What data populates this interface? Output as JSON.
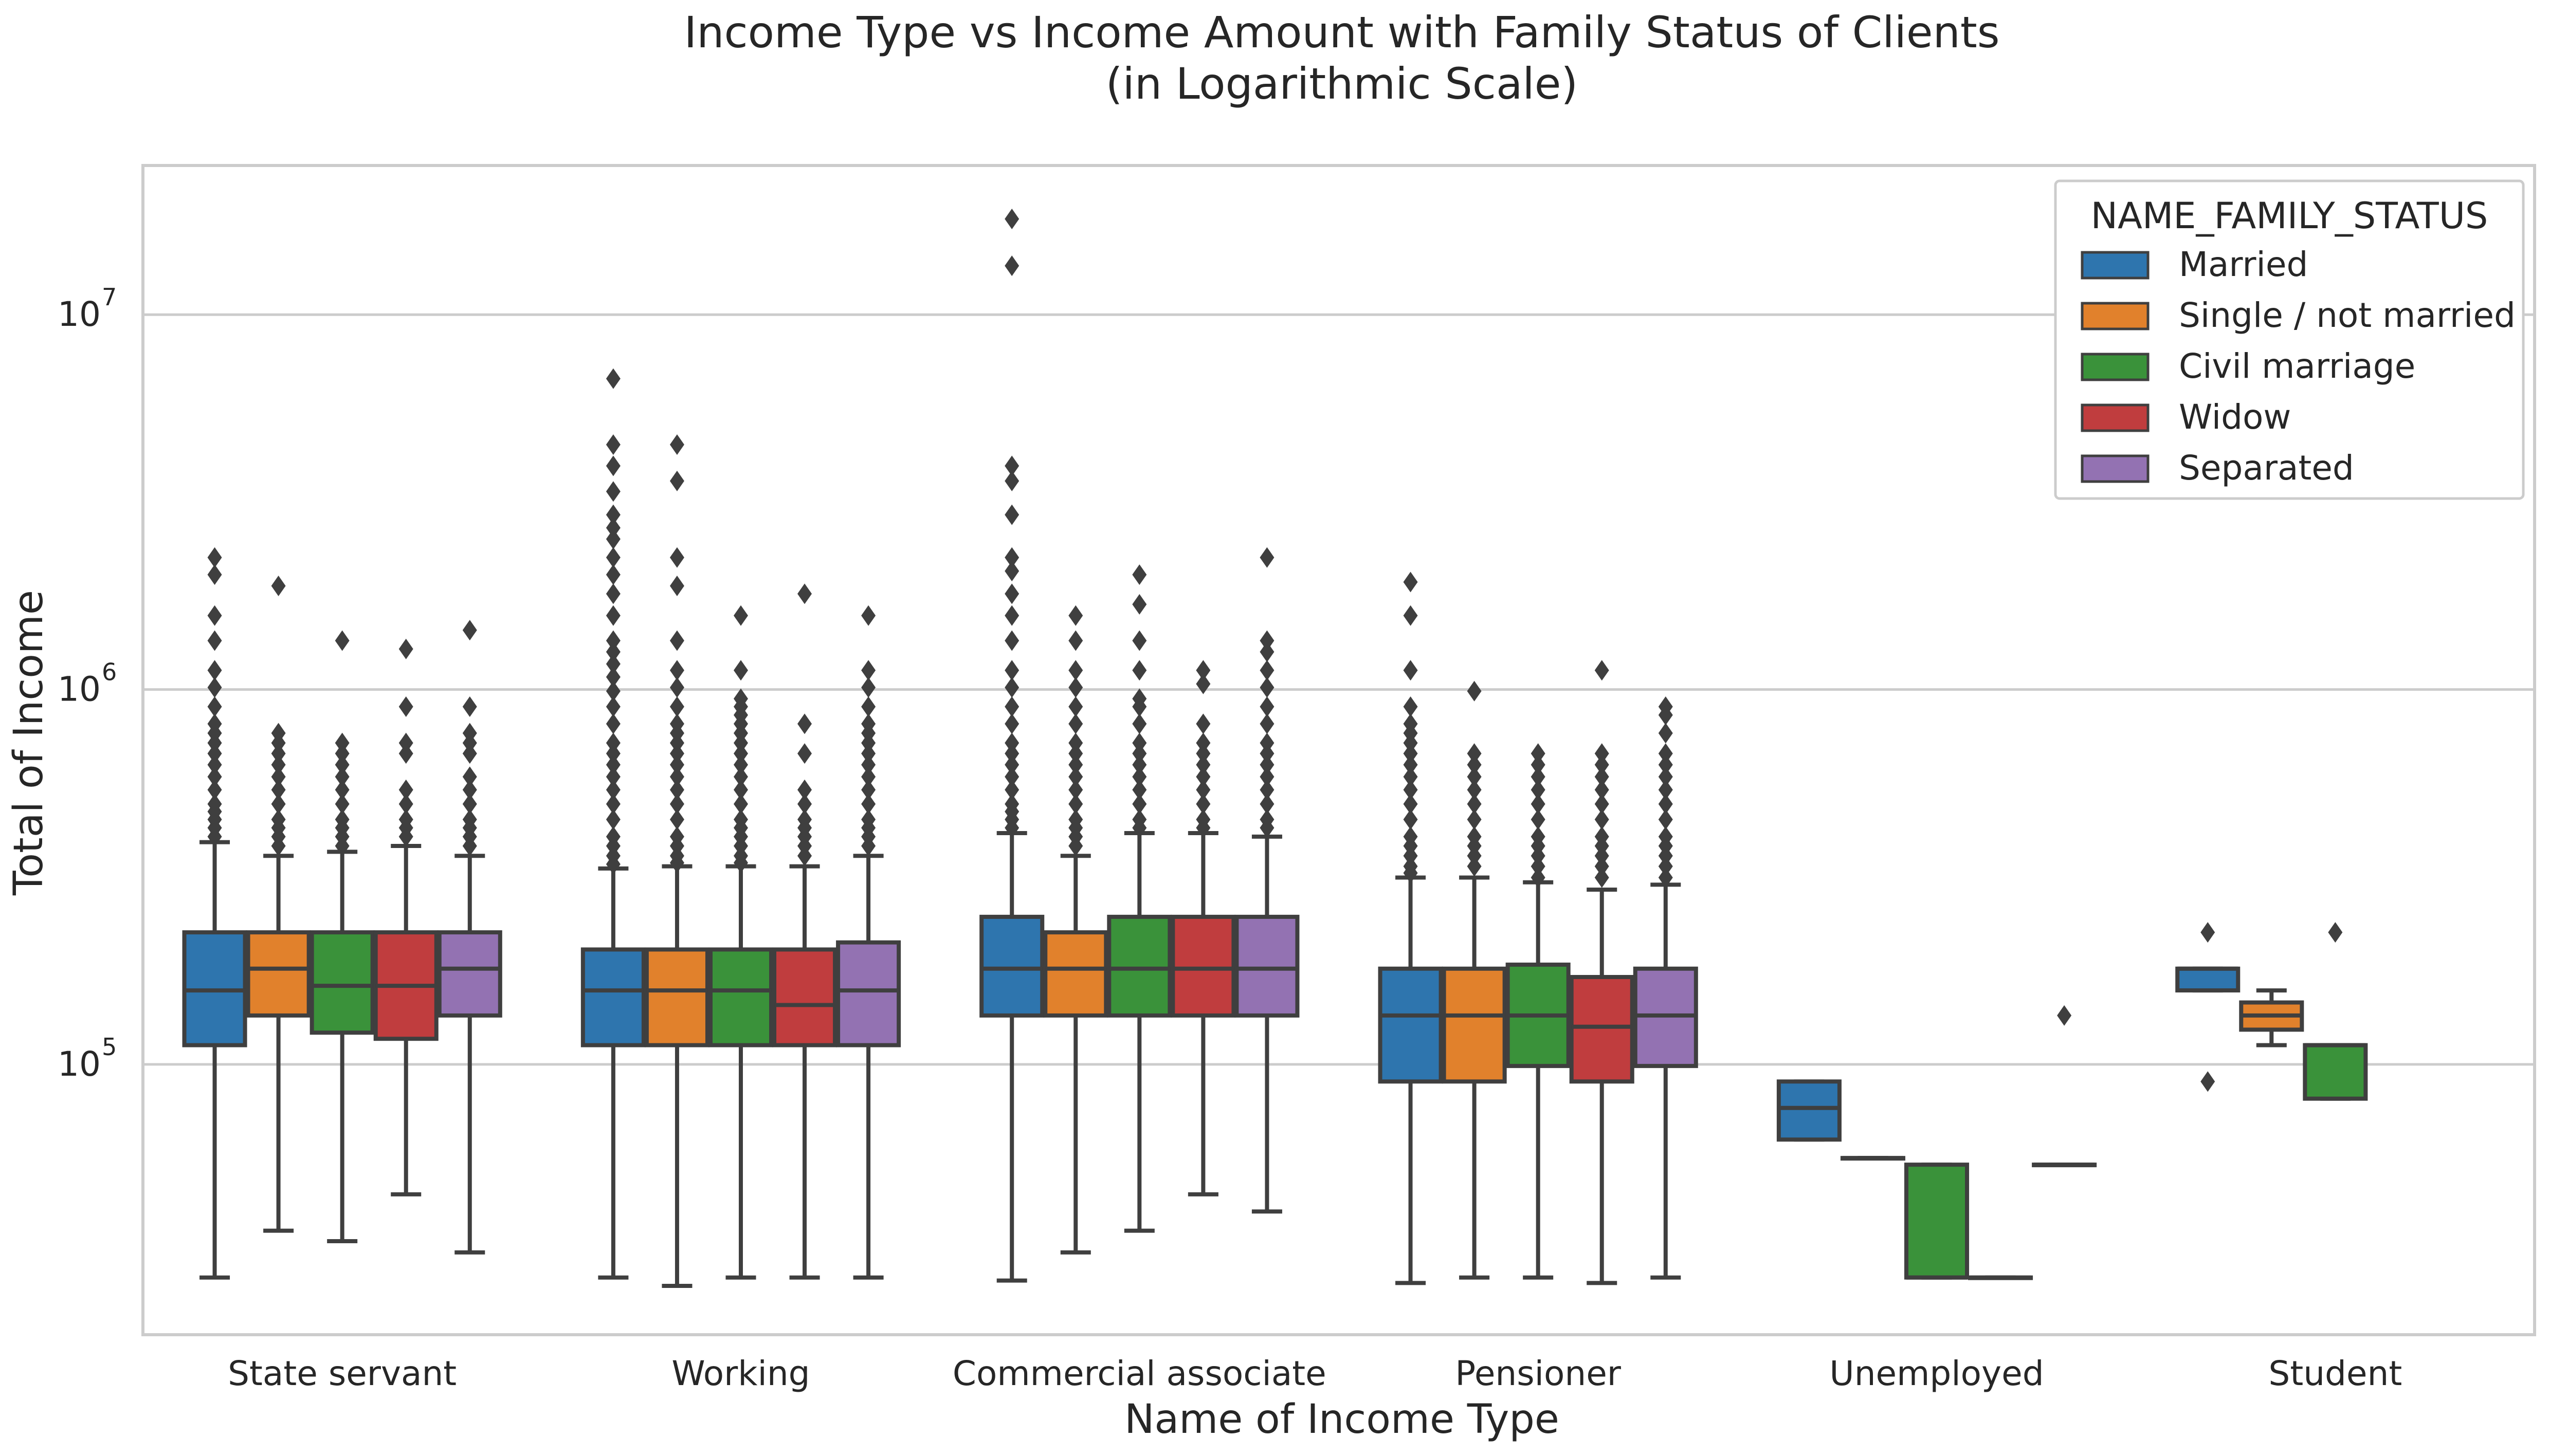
{
  "chart_data": {
    "type": "box",
    "title": "Income Type vs Income Amount with Family Status of Clients",
    "subtitle": "(in Logarithmic Scale)",
    "xlabel": "Name of Income Type",
    "ylabel": "Total of Income",
    "yscale": "log",
    "ylim": [
      19000,
      25000000
    ],
    "yticks": [
      {
        "value": 100000,
        "label": "10",
        "exp": "5"
      },
      {
        "value": 1000000,
        "label": "10",
        "exp": "6"
      },
      {
        "value": 10000000,
        "label": "10",
        "exp": "7"
      }
    ],
    "grid": "horizontal",
    "categories": [
      "State servant",
      "Working",
      "Commercial associate",
      "Pensioner",
      "Unemployed",
      "Student"
    ],
    "legend": {
      "title": "NAME_FAMILY_STATUS",
      "position": "top-right",
      "entries": [
        "Married",
        "Single / not married",
        "Civil marriage",
        "Widow",
        "Separated"
      ]
    },
    "series": [
      {
        "name": "Married",
        "color": "#2E75AE",
        "boxes": [
          {
            "whislo": 27000,
            "q1": 112500,
            "med": 157500,
            "q3": 225000,
            "whishi": 391500,
            "fliers": [
              2250000,
              2025000,
              1575000,
              1350000,
              1125000,
              1012500,
              900000,
              810000,
              765000,
              720000,
              675000,
              630000,
              585000,
              540000,
              495000,
              472500,
              450000,
              427500,
              405000
            ]
          },
          {
            "whislo": 27000,
            "q1": 112500,
            "med": 157500,
            "q3": 202500,
            "whishi": 333000,
            "fliers": [
              6750000,
              4500000,
              3950000,
              3375000,
              2925000,
              2700000,
              2520000,
              2250000,
              2025000,
              1800000,
              1575000,
              1350000,
              1260000,
              1170000,
              1080000,
              990000,
              900000,
              810000,
              720000,
              675000,
              630000,
              585000,
              540000,
              495000,
              450000,
              405000,
              382500,
              360000,
              342000
            ]
          },
          {
            "whislo": 26500,
            "q1": 135000,
            "med": 180000,
            "q3": 247500,
            "whishi": 414000,
            "fliers": [
              18000000,
              13500000,
              3950000,
              3600000,
              2925000,
              2250000,
              2070000,
              1800000,
              1575000,
              1350000,
              1125000,
              1012500,
              900000,
              810000,
              720000,
              675000,
              630000,
              585000,
              540000,
              495000,
              472500,
              450000,
              427500
            ]
          },
          {
            "whislo": 26100,
            "q1": 90000,
            "med": 135000,
            "q3": 180000,
            "whishi": 315000,
            "fliers": [
              1935000,
              1575000,
              1125000,
              900000,
              810000,
              765000,
              720000,
              675000,
              630000,
              585000,
              540000,
              495000,
              450000,
              405000,
              382500,
              360000,
              337500,
              324000
            ]
          },
          {
            "whislo": 63000,
            "q1": 63000,
            "med": 76500,
            "q3": 90000,
            "whishi": 90000,
            "fliers": []
          },
          {
            "whislo": 157500,
            "q1": 157500,
            "med": 180000,
            "q3": 180000,
            "whishi": 180000,
            "fliers": [
              225000,
              90000
            ]
          }
        ]
      },
      {
        "name": "Single / not married",
        "color": "#E1812C",
        "boxes": [
          {
            "whislo": 36000,
            "q1": 135000,
            "med": 180000,
            "q3": 225000,
            "whishi": 360000,
            "fliers": [
              1890000,
              765000,
              720000,
              675000,
              630000,
              585000,
              540000,
              495000,
              450000,
              427500,
              405000,
              382500
            ]
          },
          {
            "whislo": 25650,
            "q1": 112500,
            "med": 157500,
            "q3": 202500,
            "whishi": 337500,
            "fliers": [
              4500000,
              3600000,
              2250000,
              1890000,
              1350000,
              1125000,
              1012500,
              900000,
              810000,
              765000,
              720000,
              675000,
              630000,
              585000,
              540000,
              495000,
              450000,
              405000,
              382500,
              360000,
              345000
            ]
          },
          {
            "whislo": 31500,
            "q1": 135000,
            "med": 180000,
            "q3": 225000,
            "whishi": 360000,
            "fliers": [
              1575000,
              1350000,
              1125000,
              1012500,
              900000,
              810000,
              720000,
              675000,
              630000,
              585000,
              540000,
              495000,
              450000,
              427500,
              405000,
              382500
            ]
          },
          {
            "whislo": 27000,
            "q1": 90000,
            "med": 135000,
            "q3": 180000,
            "whishi": 315000,
            "fliers": [
              990000,
              675000,
              630000,
              585000,
              540000,
              495000,
              450000,
              405000,
              382500,
              360000,
              337500
            ]
          },
          {
            "whislo": 56250,
            "q1": 56250,
            "med": 56250,
            "q3": 56250,
            "whishi": 56250,
            "fliers": []
          },
          {
            "whislo": 112500,
            "q1": 123750,
            "med": 135000,
            "q3": 146250,
            "whishi": 157500,
            "fliers": []
          }
        ]
      },
      {
        "name": "Civil marriage",
        "color": "#3A923A",
        "boxes": [
          {
            "whislo": 33750,
            "q1": 121500,
            "med": 162000,
            "q3": 225000,
            "whishi": 369000,
            "fliers": [
              1350000,
              720000,
              675000,
              630000,
              585000,
              540000,
              495000,
              450000,
              427500,
              405000,
              382500
            ]
          },
          {
            "whislo": 27000,
            "q1": 112500,
            "med": 157500,
            "q3": 202500,
            "whishi": 337500,
            "fliers": [
              1575000,
              1125000,
              945000,
              900000,
              855000,
              810000,
              765000,
              720000,
              675000,
              630000,
              585000,
              540000,
              495000,
              450000,
              427500,
              405000,
              382500,
              360000,
              345000
            ]
          },
          {
            "whislo": 36000,
            "q1": 135000,
            "med": 180000,
            "q3": 247500,
            "whishi": 414000,
            "fliers": [
              2025000,
              1687500,
              1350000,
              1125000,
              945000,
              900000,
              810000,
              720000,
              675000,
              630000,
              585000,
              540000,
              495000,
              450000,
              427500
            ]
          },
          {
            "whislo": 27000,
            "q1": 99000,
            "med": 135000,
            "q3": 184500,
            "whishi": 306000,
            "fliers": [
              675000,
              630000,
              585000,
              540000,
              495000,
              450000,
              405000,
              382500,
              360000,
              337500,
              315000
            ]
          },
          {
            "whislo": 27000,
            "q1": 27000,
            "med": 27000,
            "q3": 54000,
            "whishi": 54000,
            "fliers": []
          },
          {
            "whislo": 81000,
            "q1": 81000,
            "med": 112500,
            "q3": 112500,
            "whishi": 112500,
            "fliers": [
              225000
            ]
          }
        ]
      },
      {
        "name": "Widow",
        "color": "#C03D3E",
        "boxes": [
          {
            "whislo": 45000,
            "q1": 117000,
            "med": 162000,
            "q3": 225000,
            "whishi": 382500,
            "fliers": [
              1282500,
              900000,
              720000,
              675000,
              540000,
              495000,
              450000,
              427500,
              405000
            ]
          },
          {
            "whislo": 27000,
            "q1": 112500,
            "med": 144000,
            "q3": 202500,
            "whishi": 337500,
            "fliers": [
              1800000,
              810000,
              675000,
              540000,
              495000,
              450000,
              427500,
              405000,
              382500,
              360000
            ]
          },
          {
            "whislo": 45000,
            "q1": 135000,
            "med": 180000,
            "q3": 247500,
            "whishi": 414000,
            "fliers": [
              1125000,
              1035000,
              810000,
              720000,
              675000,
              630000,
              585000,
              540000,
              495000,
              450000,
              427500
            ]
          },
          {
            "whislo": 26100,
            "q1": 90000,
            "med": 126000,
            "q3": 171000,
            "whishi": 292500,
            "fliers": [
              1125000,
              675000,
              630000,
              585000,
              540000,
              495000,
              450000,
              405000,
              382500,
              360000,
              337500,
              315000
            ]
          },
          {
            "whislo": 27000,
            "q1": 27000,
            "med": 27000,
            "q3": 27000,
            "whishi": 27000,
            "fliers": []
          }
        ]
      },
      {
        "name": "Separated",
        "color": "#9372B2",
        "boxes": [
          {
            "whislo": 31500,
            "q1": 135000,
            "med": 180000,
            "q3": 225000,
            "whishi": 360000,
            "fliers": [
              1440000,
              900000,
              765000,
              720000,
              675000,
              585000,
              540000,
              495000,
              450000,
              427500,
              405000,
              382500
            ]
          },
          {
            "whislo": 27000,
            "q1": 112500,
            "med": 157500,
            "q3": 211500,
            "whishi": 360000,
            "fliers": [
              1575000,
              1125000,
              1012500,
              900000,
              810000,
              765000,
              720000,
              675000,
              630000,
              585000,
              540000,
              495000,
              450000,
              427500,
              405000,
              382500
            ]
          },
          {
            "whislo": 40500,
            "q1": 135000,
            "med": 180000,
            "q3": 247500,
            "whishi": 405000,
            "fliers": [
              2250000,
              1350000,
              1260000,
              1125000,
              1012500,
              900000,
              810000,
              720000,
              675000,
              630000,
              585000,
              540000,
              495000,
              450000,
              427500
            ]
          },
          {
            "whislo": 27000,
            "q1": 99000,
            "med": 135000,
            "q3": 180000,
            "whishi": 301500,
            "fliers": [
              900000,
              855000,
              765000,
              675000,
              630000,
              585000,
              540000,
              495000,
              450000,
              405000,
              382500,
              360000,
              337500,
              315000
            ]
          },
          {
            "whislo": 54000,
            "q1": 54000,
            "med": 54000,
            "q3": 54000,
            "whishi": 54000,
            "fliers": [
              135000
            ]
          }
        ]
      }
    ]
  }
}
